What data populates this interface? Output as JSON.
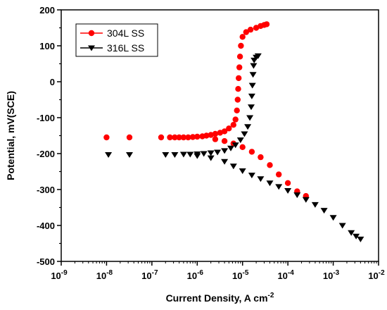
{
  "chart_data": {
    "type": "scatter",
    "title": "",
    "xlabel": "Current Density, A cm",
    "xlabel_sup": "-2",
    "ylabel": "Potential, mV(SCE)",
    "x_scale": "log",
    "xlim": [
      1e-09,
      0.01
    ],
    "ylim": [
      -500,
      200
    ],
    "x_tick_exponents": [
      -9,
      -8,
      -7,
      -6,
      -5,
      -4,
      -3,
      -2
    ],
    "x_tick_base": "10",
    "y_ticks": [
      -500,
      -400,
      -300,
      -200,
      -100,
      0,
      100,
      200
    ],
    "grid": false,
    "legend_position": "top-left",
    "series": [
      {
        "name": "304L SS",
        "color": "#ff0000",
        "marker": "circle",
        "points": [
          [
            1e-08,
            -155
          ],
          [
            3.2e-08,
            -155
          ],
          [
            1.6e-07,
            -155
          ],
          [
            2.5e-07,
            -155
          ],
          [
            3.2e-07,
            -155
          ],
          [
            4e-07,
            -155
          ],
          [
            5e-07,
            -155
          ],
          [
            6.3e-07,
            -155
          ],
          [
            8e-07,
            -154
          ],
          [
            1e-06,
            -153
          ],
          [
            1.3e-06,
            -152
          ],
          [
            1.6e-06,
            -150
          ],
          [
            2e-06,
            -148
          ],
          [
            2.5e-06,
            -145
          ],
          [
            3.2e-06,
            -142
          ],
          [
            4e-06,
            -138
          ],
          [
            5e-06,
            -130
          ],
          [
            6.3e-06,
            -120
          ],
          [
            7e-06,
            -105
          ],
          [
            7.5e-06,
            -80
          ],
          [
            7.8e-06,
            -50
          ],
          [
            8e-06,
            -20
          ],
          [
            8.2e-06,
            10
          ],
          [
            8.5e-06,
            40
          ],
          [
            8.8e-06,
            70
          ],
          [
            9.2e-06,
            100
          ],
          [
            1e-05,
            125
          ],
          [
            1.2e-05,
            138
          ],
          [
            1.5e-05,
            145
          ],
          [
            2e-05,
            150
          ],
          [
            2.5e-05,
            155
          ],
          [
            3e-05,
            158
          ],
          [
            3.4e-05,
            160
          ],
          [
            2.5e-06,
            -160
          ],
          [
            4e-06,
            -165
          ],
          [
            6.3e-06,
            -172
          ],
          [
            1e-05,
            -182
          ],
          [
            1.6e-05,
            -195
          ],
          [
            2.5e-05,
            -210
          ],
          [
            4e-05,
            -232
          ],
          [
            6.3e-05,
            -258
          ],
          [
            0.0001,
            -282
          ],
          [
            0.00016,
            -305
          ],
          [
            0.00025,
            -318
          ]
        ]
      },
      {
        "name": "316L SS",
        "color": "#000000",
        "marker": "triangle-down",
        "points": [
          [
            1.1e-08,
            -203
          ],
          [
            3.2e-08,
            -203
          ],
          [
            2e-07,
            -203
          ],
          [
            3.2e-07,
            -203
          ],
          [
            5e-07,
            -202
          ],
          [
            7e-07,
            -202
          ],
          [
            1e-06,
            -201
          ],
          [
            1.4e-06,
            -200
          ],
          [
            2e-06,
            -198
          ],
          [
            2.8e-06,
            -196
          ],
          [
            4e-06,
            -192
          ],
          [
            5.5e-06,
            -185
          ],
          [
            7e-06,
            -176
          ],
          [
            9e-06,
            -162
          ],
          [
            1.1e-05,
            -145
          ],
          [
            1.3e-05,
            -125
          ],
          [
            1.45e-05,
            -100
          ],
          [
            1.55e-05,
            -70
          ],
          [
            1.6e-05,
            -40
          ],
          [
            1.65e-05,
            -10
          ],
          [
            1.7e-05,
            20
          ],
          [
            1.75e-05,
            45
          ],
          [
            1.8e-05,
            60
          ],
          [
            2e-05,
            68
          ],
          [
            2.2e-05,
            72
          ],
          [
            1e-06,
            -206
          ],
          [
            2e-06,
            -212
          ],
          [
            4e-06,
            -222
          ],
          [
            6.3e-06,
            -235
          ],
          [
            1e-05,
            -248
          ],
          [
            1.6e-05,
            -260
          ],
          [
            2.5e-05,
            -270
          ],
          [
            4e-05,
            -282
          ],
          [
            6.3e-05,
            -292
          ],
          [
            0.0001,
            -303
          ],
          [
            0.00016,
            -315
          ],
          [
            0.00025,
            -328
          ],
          [
            0.0004,
            -342
          ],
          [
            0.00063,
            -358
          ],
          [
            0.001,
            -378
          ],
          [
            0.0016,
            -400
          ],
          [
            0.0025,
            -420
          ],
          [
            0.0032,
            -430
          ],
          [
            0.004,
            -438
          ]
        ]
      }
    ]
  }
}
